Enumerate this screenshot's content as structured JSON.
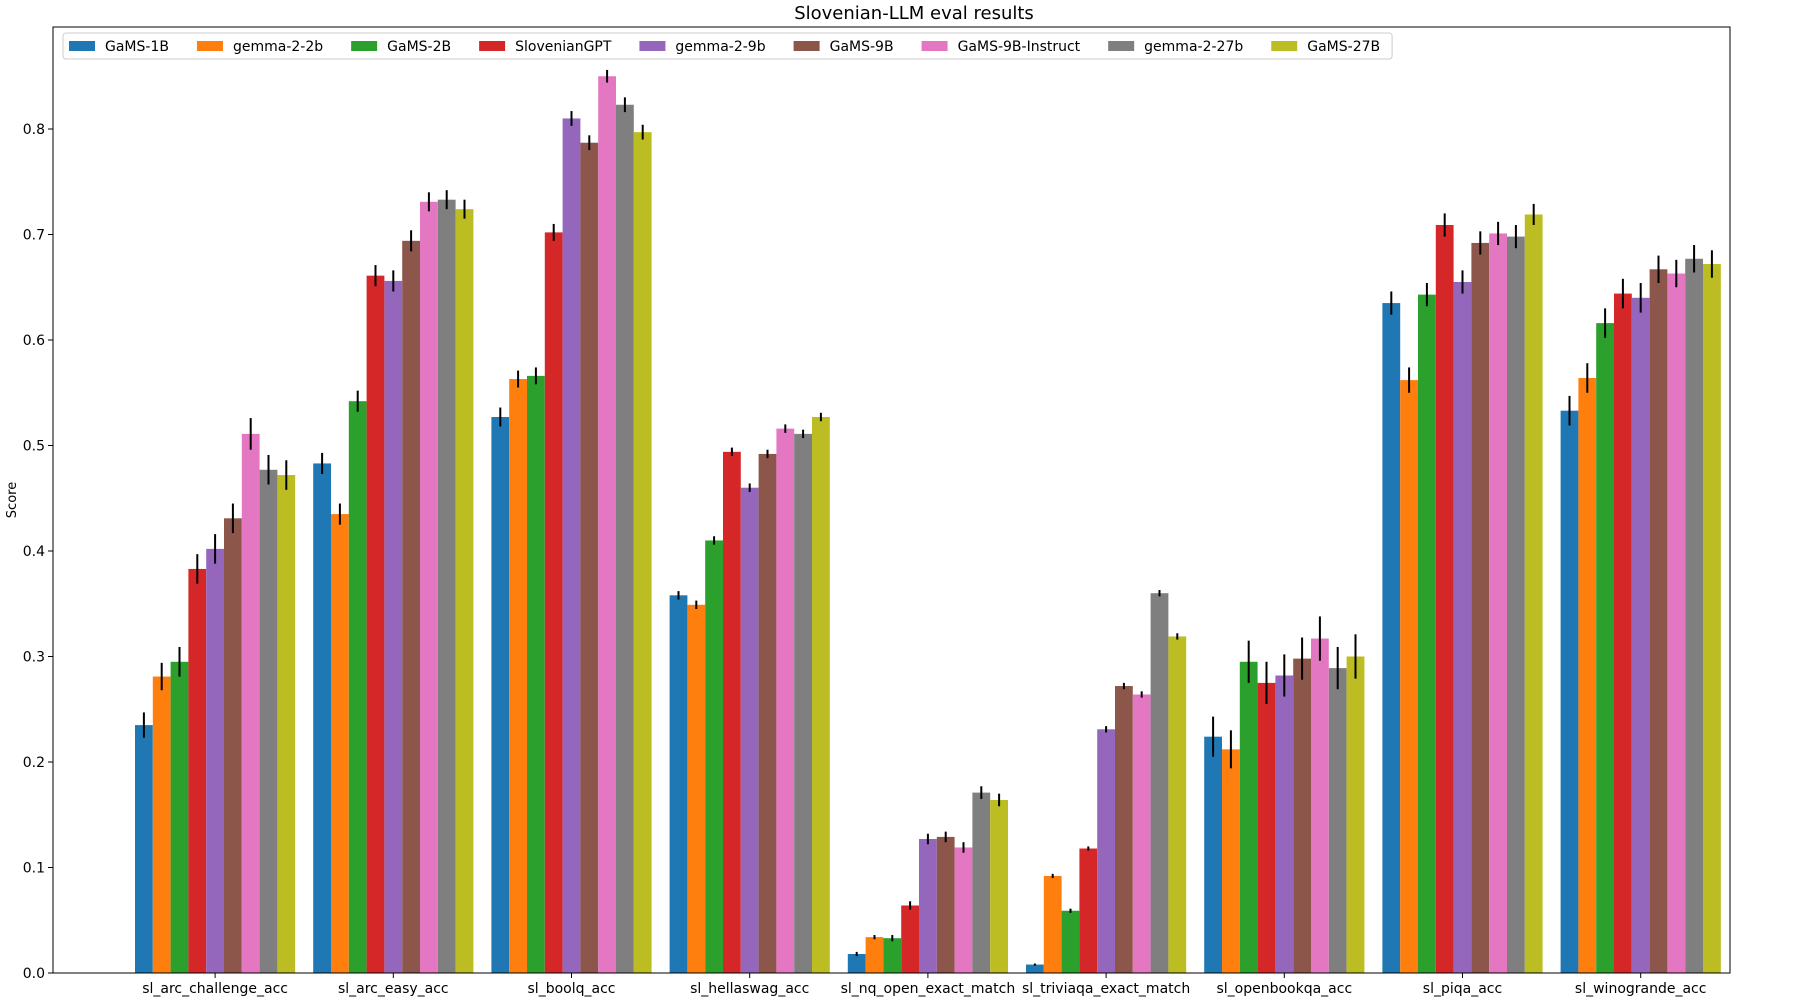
{
  "chart_data": {
    "type": "bar",
    "title": "Slovenian-LLM eval results",
    "xlabel": "",
    "ylabel": "Score",
    "ylim": [
      0,
      0.9
    ],
    "yticks": [
      0.0,
      0.1,
      0.2,
      0.3,
      0.4,
      0.5,
      0.6,
      0.7,
      0.8
    ],
    "ytick_labels": [
      "0.0",
      "0.1",
      "0.2",
      "0.3",
      "0.4",
      "0.5",
      "0.6",
      "0.7",
      "0.8"
    ],
    "grid": false,
    "legend_position": "top-left",
    "categories": [
      "sl_arc_challenge_acc",
      "sl_arc_easy_acc",
      "sl_boolq_acc",
      "sl_hellaswag_acc",
      "sl_nq_open_exact_match",
      "sl_triviaqa_exact_match",
      "sl_openbookqa_acc",
      "sl_piqa_acc",
      "sl_winogrande_acc"
    ],
    "series": [
      {
        "name": "GaMS-1B",
        "color": "#1f77b4",
        "values": [
          0.235,
          0.483,
          0.527,
          0.358,
          0.018,
          0.008,
          0.224,
          0.635,
          0.533
        ],
        "errors": [
          0.012,
          0.01,
          0.009,
          0.004,
          0.002,
          0.001,
          0.019,
          0.011,
          0.014
        ]
      },
      {
        "name": "gemma-2-2b",
        "color": "#ff7f0e",
        "values": [
          0.281,
          0.435,
          0.563,
          0.349,
          0.034,
          0.092,
          0.212,
          0.562,
          0.564
        ],
        "errors": [
          0.013,
          0.01,
          0.008,
          0.004,
          0.002,
          0.002,
          0.018,
          0.012,
          0.014
        ]
      },
      {
        "name": "GaMS-2B",
        "color": "#2ca02c",
        "values": [
          0.295,
          0.542,
          0.566,
          0.41,
          0.033,
          0.059,
          0.295,
          0.643,
          0.616
        ],
        "errors": [
          0.014,
          0.01,
          0.008,
          0.004,
          0.003,
          0.002,
          0.02,
          0.011,
          0.014
        ]
      },
      {
        "name": "SlovenianGPT",
        "color": "#d62728",
        "values": [
          0.383,
          0.661,
          0.702,
          0.494,
          0.064,
          0.118,
          0.275,
          0.709,
          0.644
        ],
        "errors": [
          0.014,
          0.01,
          0.008,
          0.004,
          0.004,
          0.002,
          0.02,
          0.011,
          0.014
        ]
      },
      {
        "name": "gemma-2-9b",
        "color": "#9467bd",
        "values": [
          0.402,
          0.656,
          0.81,
          0.46,
          0.127,
          0.231,
          0.282,
          0.655,
          0.64
        ],
        "errors": [
          0.014,
          0.01,
          0.007,
          0.004,
          0.005,
          0.003,
          0.02,
          0.011,
          0.014
        ]
      },
      {
        "name": "GaMS-9B",
        "color": "#8c564b",
        "values": [
          0.431,
          0.694,
          0.787,
          0.492,
          0.129,
          0.272,
          0.298,
          0.692,
          0.667
        ],
        "errors": [
          0.014,
          0.01,
          0.007,
          0.004,
          0.005,
          0.003,
          0.02,
          0.011,
          0.013
        ]
      },
      {
        "name": "GaMS-9B-Instruct",
        "color": "#e377c2",
        "values": [
          0.511,
          0.731,
          0.85,
          0.516,
          0.119,
          0.264,
          0.317,
          0.701,
          0.663
        ],
        "errors": [
          0.015,
          0.009,
          0.006,
          0.004,
          0.005,
          0.003,
          0.021,
          0.011,
          0.013
        ]
      },
      {
        "name": "gemma-2-27b",
        "color": "#7f7f7f",
        "values": [
          0.477,
          0.733,
          0.823,
          0.511,
          0.171,
          0.36,
          0.289,
          0.698,
          0.677
        ],
        "errors": [
          0.014,
          0.009,
          0.007,
          0.004,
          0.006,
          0.003,
          0.02,
          0.011,
          0.013
        ]
      },
      {
        "name": "GaMS-27B",
        "color": "#bcbd22",
        "values": [
          0.472,
          0.724,
          0.797,
          0.527,
          0.164,
          0.319,
          0.3,
          0.719,
          0.672
        ],
        "errors": [
          0.014,
          0.009,
          0.007,
          0.004,
          0.006,
          0.003,
          0.021,
          0.01,
          0.013
        ]
      }
    ]
  }
}
